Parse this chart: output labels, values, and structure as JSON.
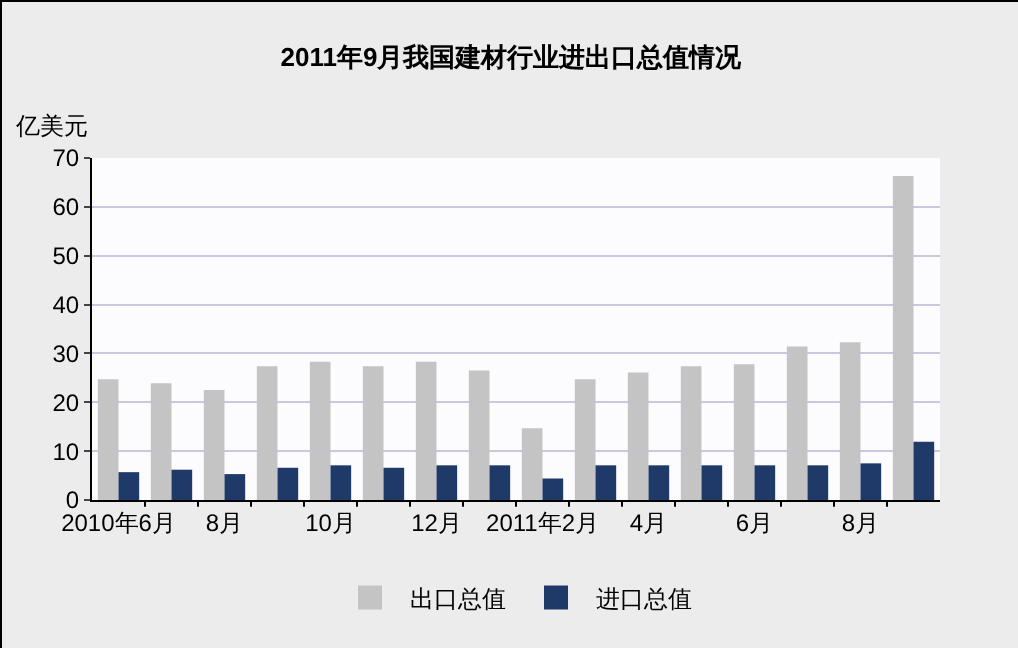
{
  "chart_data": {
    "type": "bar",
    "title": "2011年9月我国建材行业进出口总值情况",
    "ylabel": "亿美元",
    "categories": [
      "2010年6月",
      null,
      "8月",
      null,
      "10月",
      null,
      "12月",
      null,
      "2011年2月",
      null,
      "4月",
      null,
      "6月",
      null,
      "8月",
      null
    ],
    "series": [
      {
        "name": "出口总值",
        "color": "#c4c4c4",
        "values": [
          24.7,
          23.9,
          22.5,
          27.4,
          28.3,
          27.4,
          28.3,
          26.5,
          14.7,
          24.7,
          26.1,
          27.4,
          27.8,
          31.4,
          32.3,
          66.3
        ]
      },
      {
        "name": "进口总值",
        "color": "#1f3a68",
        "values": [
          5.7,
          6.2,
          5.3,
          6.6,
          7.1,
          6.6,
          7.1,
          7.1,
          4.4,
          7.1,
          7.1,
          7.1,
          7.1,
          7.1,
          7.5,
          11.9
        ]
      }
    ],
    "ylim": [
      0,
      70
    ],
    "yticks": [
      0,
      10,
      20,
      30,
      40,
      50,
      60,
      70
    ],
    "grid": "y",
    "legend": "bottom"
  }
}
